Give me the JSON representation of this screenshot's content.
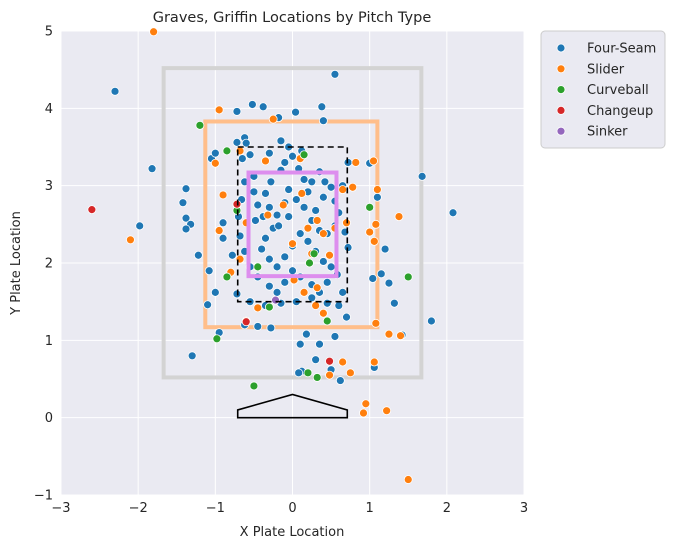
{
  "chart_data": {
    "type": "scatter",
    "title": "Graves, Griffin Locations by Pitch Type",
    "xlabel": "X Plate Location",
    "ylabel": "Y Plate Location",
    "xlim": [
      -3,
      3
    ],
    "ylim": [
      -1,
      5
    ],
    "xticks": [
      "−3",
      "−2",
      "−1",
      "0",
      "1",
      "2",
      "3"
    ],
    "yticks": [
      "−1",
      "0",
      "1",
      "2",
      "3",
      "4",
      "5"
    ],
    "grid": true,
    "legend_position": "outside upper right",
    "series": [
      {
        "name": "Four-Seam",
        "color": "#1f77b4",
        "points": [
          [
            -2.3,
            4.22
          ],
          [
            -1.82,
            3.22
          ],
          [
            -1.98,
            2.48
          ],
          [
            -1.38,
            2.96
          ],
          [
            -1.42,
            2.78
          ],
          [
            -1.38,
            2.58
          ],
          [
            -1.32,
            2.5
          ],
          [
            -1.38,
            2.44
          ],
          [
            -1.22,
            2.1
          ],
          [
            -1.08,
            1.9
          ],
          [
            -1.1,
            1.46
          ],
          [
            -1.3,
            0.8
          ],
          [
            -1.0,
            1.62
          ],
          [
            -0.95,
            1.1
          ],
          [
            -0.9,
            2.32
          ],
          [
            -0.9,
            2.52
          ],
          [
            -0.78,
            2.1
          ],
          [
            -1.05,
            3.35
          ],
          [
            -1.0,
            3.42
          ],
          [
            -0.72,
            3.56
          ],
          [
            -0.72,
            3.96
          ],
          [
            -0.52,
            4.05
          ],
          [
            -0.38,
            4.02
          ],
          [
            -0.18,
            3.88
          ],
          [
            0.04,
            3.95
          ],
          [
            0.38,
            4.02
          ],
          [
            0.55,
            4.44
          ],
          [
            0.4,
            3.84
          ],
          [
            0.72,
            3.3
          ],
          [
            1.0,
            3.29
          ],
          [
            1.1,
            2.85
          ],
          [
            1.2,
            2.18
          ],
          [
            1.04,
            1.8
          ],
          [
            1.15,
            1.86
          ],
          [
            1.25,
            1.74
          ],
          [
            1.32,
            1.48
          ],
          [
            1.42,
            1.07
          ],
          [
            1.8,
            1.25
          ],
          [
            1.68,
            3.12
          ],
          [
            2.08,
            2.65
          ],
          [
            -0.62,
            3.62
          ],
          [
            -0.6,
            3.55
          ],
          [
            -0.65,
            3.35
          ],
          [
            -0.5,
            3.12
          ],
          [
            -0.5,
            2.92
          ],
          [
            -0.45,
            2.75
          ],
          [
            -0.48,
            2.55
          ],
          [
            -0.38,
            2.6
          ],
          [
            -0.3,
            2.72
          ],
          [
            -0.35,
            2.9
          ],
          [
            -0.28,
            3.05
          ],
          [
            -0.15,
            3.2
          ],
          [
            -0.1,
            3.3
          ],
          [
            0.0,
            3.38
          ],
          [
            0.08,
            3.22
          ],
          [
            0.15,
            3.08
          ],
          [
            0.25,
            3.05
          ],
          [
            0.35,
            3.18
          ],
          [
            0.42,
            3.05
          ],
          [
            0.5,
            2.98
          ],
          [
            0.55,
            2.8
          ],
          [
            0.6,
            2.65
          ],
          [
            0.55,
            2.48
          ],
          [
            0.45,
            2.38
          ],
          [
            0.35,
            2.42
          ],
          [
            0.25,
            2.55
          ],
          [
            0.15,
            2.72
          ],
          [
            0.05,
            2.82
          ],
          [
            -0.05,
            2.95
          ],
          [
            -0.1,
            2.78
          ],
          [
            -0.2,
            2.62
          ],
          [
            -0.25,
            2.45
          ],
          [
            -0.35,
            2.32
          ],
          [
            -0.4,
            2.18
          ],
          [
            -0.3,
            2.05
          ],
          [
            -0.2,
            1.95
          ],
          [
            -0.1,
            2.08
          ],
          [
            0.0,
            2.22
          ],
          [
            0.1,
            2.38
          ],
          [
            0.2,
            2.28
          ],
          [
            0.3,
            2.15
          ],
          [
            0.4,
            2.02
          ],
          [
            0.5,
            1.95
          ],
          [
            0.58,
            1.85
          ],
          [
            0.45,
            1.75
          ],
          [
            0.35,
            1.62
          ],
          [
            0.25,
            1.72
          ],
          [
            0.1,
            1.82
          ],
          [
            0.0,
            1.9
          ],
          [
            -0.1,
            1.75
          ],
          [
            -0.2,
            1.62
          ],
          [
            -0.3,
            1.7
          ],
          [
            -0.45,
            1.82
          ],
          [
            -0.55,
            1.95
          ],
          [
            -0.62,
            2.15
          ],
          [
            -0.68,
            2.35
          ],
          [
            -0.7,
            2.6
          ],
          [
            -0.66,
            2.82
          ],
          [
            -0.62,
            3.05
          ],
          [
            0.65,
            3.0
          ],
          [
            0.68,
            2.4
          ],
          [
            0.72,
            2.2
          ],
          [
            0.65,
            1.62
          ],
          [
            -0.72,
            1.6
          ],
          [
            -0.55,
            1.5
          ],
          [
            -0.35,
            1.45
          ],
          [
            -0.15,
            1.48
          ],
          [
            0.05,
            1.5
          ],
          [
            0.25,
            1.55
          ],
          [
            0.45,
            1.48
          ],
          [
            0.6,
            1.45
          ],
          [
            -0.62,
            1.2
          ],
          [
            -0.45,
            1.18
          ],
          [
            -0.28,
            1.16
          ],
          [
            0.7,
            1.3
          ],
          [
            0.55,
            1.05
          ],
          [
            0.18,
            1.08
          ],
          [
            0.35,
            0.95
          ],
          [
            0.1,
            0.95
          ],
          [
            0.12,
            0.6
          ],
          [
            0.3,
            0.75
          ],
          [
            0.5,
            0.62
          ],
          [
            0.62,
            0.48
          ],
          [
            1.06,
            0.65
          ],
          [
            0.08,
            0.58
          ],
          [
            -0.15,
            3.58
          ],
          [
            -0.05,
            3.5
          ],
          [
            0.12,
            3.45
          ],
          [
            -0.3,
            3.42
          ],
          [
            -0.55,
            3.4
          ],
          [
            0.3,
            2.68
          ],
          [
            0.4,
            2.85
          ],
          [
            -0.05,
            2.6
          ],
          [
            -0.18,
            2.48
          ],
          [
            0.2,
            2.92
          ]
        ]
      },
      {
        "name": "Slider",
        "color": "#ff7f0e",
        "points": [
          [
            -1.8,
            4.99
          ],
          [
            -0.95,
            3.98
          ],
          [
            -0.25,
            3.86
          ],
          [
            -1.0,
            3.29
          ],
          [
            -0.9,
            2.88
          ],
          [
            -0.95,
            2.42
          ],
          [
            -0.8,
            1.88
          ],
          [
            -0.68,
            2.05
          ],
          [
            -0.6,
            2.52
          ],
          [
            -0.68,
            3.45
          ],
          [
            -0.72,
            2.75
          ],
          [
            -2.1,
            2.3
          ],
          [
            -0.35,
            3.32
          ],
          [
            0.1,
            3.35
          ],
          [
            0.4,
            2.38
          ],
          [
            0.55,
            2.45
          ],
          [
            0.7,
            2.52
          ],
          [
            0.78,
            2.98
          ],
          [
            0.82,
            3.3
          ],
          [
            1.0,
            2.4
          ],
          [
            1.06,
            2.28
          ],
          [
            1.08,
            2.5
          ],
          [
            1.1,
            2.95
          ],
          [
            1.38,
            2.6
          ],
          [
            1.05,
            3.32
          ],
          [
            -0.32,
            2.62
          ],
          [
            0.0,
            2.25
          ],
          [
            0.25,
            2.12
          ],
          [
            0.65,
            2.95
          ],
          [
            0.48,
            2.1
          ],
          [
            0.02,
            1.78
          ],
          [
            0.15,
            1.62
          ],
          [
            0.32,
            1.68
          ],
          [
            -0.45,
            1.42
          ],
          [
            0.4,
            1.35
          ],
          [
            0.65,
            0.72
          ],
          [
            0.75,
            0.58
          ],
          [
            0.48,
            0.55
          ],
          [
            1.06,
            0.72
          ],
          [
            1.08,
            1.22
          ],
          [
            1.25,
            1.08
          ],
          [
            1.4,
            1.06
          ],
          [
            0.95,
            0.18
          ],
          [
            0.92,
            0.06
          ],
          [
            1.22,
            0.09
          ],
          [
            1.5,
            -0.8
          ],
          [
            0.2,
            2.45
          ],
          [
            -0.12,
            2.75
          ],
          [
            0.12,
            2.9
          ],
          [
            0.32,
            2.55
          ],
          [
            0.3,
            1.45
          ],
          [
            -0.6,
            1.25
          ]
        ]
      },
      {
        "name": "Curveball",
        "color": "#2ca02c",
        "points": [
          [
            -1.2,
            3.78
          ],
          [
            -0.85,
            3.45
          ],
          [
            -0.72,
            2.68
          ],
          [
            -0.45,
            1.95
          ],
          [
            -0.3,
            1.43
          ],
          [
            -0.98,
            1.02
          ],
          [
            -0.85,
            1.82
          ],
          [
            0.15,
            3.4
          ],
          [
            0.22,
            2.0
          ],
          [
            0.28,
            2.12
          ],
          [
            0.45,
            1.25
          ],
          [
            0.32,
            0.52
          ],
          [
            0.2,
            0.58
          ],
          [
            1.5,
            1.82
          ],
          [
            1.0,
            2.72
          ],
          [
            -0.5,
            0.41
          ]
        ]
      },
      {
        "name": "Changeup",
        "color": "#d62728",
        "points": [
          [
            -2.6,
            2.69
          ],
          [
            -0.72,
            2.76
          ],
          [
            0.48,
            0.73
          ],
          [
            -0.6,
            1.24
          ]
        ]
      },
      {
        "name": "Sinker",
        "color": "#9467bd",
        "points": [
          [
            -0.22,
            1.52
          ]
        ]
      }
    ],
    "overlays": {
      "outer_gray_box": {
        "color": "#d3d3d3",
        "x": [
          -1.67,
          1.67
        ],
        "y": [
          0.52,
          4.52
        ]
      },
      "orange_box": {
        "color": "#ffbe8a",
        "x": [
          -1.13,
          1.1
        ],
        "y": [
          1.17,
          3.83
        ]
      },
      "dashed_zone": {
        "color": "#000000",
        "x": [
          -0.71,
          0.71
        ],
        "y": [
          1.5,
          3.5
        ]
      },
      "purple_box": {
        "color": "#dd8eee",
        "x": [
          -0.57,
          0.57
        ],
        "y": [
          1.83,
          3.17
        ]
      },
      "home_plate": [
        [
          -0.71,
          0.1
        ],
        [
          0.0,
          0.3
        ],
        [
          0.71,
          0.1
        ],
        [
          0.71,
          0.0
        ],
        [
          -0.71,
          0.0
        ]
      ]
    }
  }
}
